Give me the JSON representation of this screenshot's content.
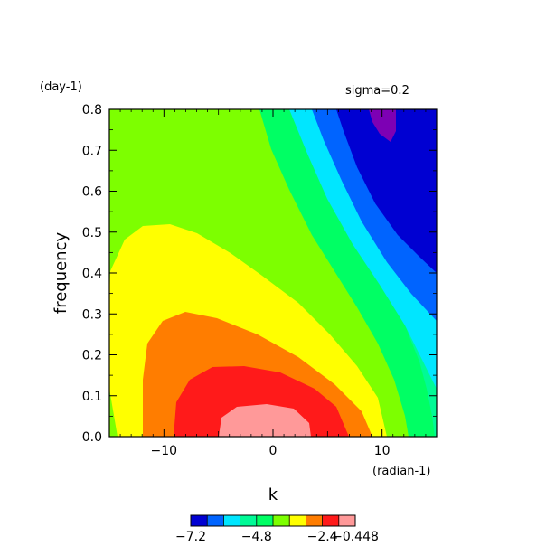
{
  "chart_data": {
    "type": "contour",
    "title": "",
    "annotation": "sigma=0.2",
    "xlabel": "k",
    "xunit": "(radian-1)",
    "ylabel": "frequency",
    "yunit": "(day-1)",
    "xlim": [
      -15,
      15
    ],
    "ylim": [
      0,
      0.8
    ],
    "xticks": [
      -10,
      0,
      10
    ],
    "xtick_labels": [
      "−10",
      "0",
      "10"
    ],
    "yticks": [
      0.0,
      0.1,
      0.2,
      0.3,
      0.4,
      0.5,
      0.6,
      0.7,
      0.8
    ],
    "ytick_labels": [
      "0.0",
      "0.1",
      "0.2",
      "0.3",
      "0.4",
      "0.5",
      "0.6",
      "0.7",
      "0.8"
    ],
    "levels": [
      -7.2,
      -6.6,
      -6.0,
      -5.4,
      -4.8,
      -4.2,
      -3.6,
      -3.0,
      -2.4,
      -1.8,
      -0.448
    ],
    "colors": [
      "#0000d2",
      "#0064ff",
      "#00e6ff",
      "#00fa96",
      "#00ff64",
      "#7dff00",
      "#ffff00",
      "#ff7d00",
      "#ff1a1a",
      "#ff9999"
    ],
    "below_min_color": "#7d00b4",
    "colorbar_labels": [
      "−7.2",
      "−4.8",
      "−2.4",
      "−0.448"
    ],
    "colorbar_label_values": [
      -7.2,
      -4.8,
      -2.4,
      -0.448
    ],
    "background_color": "#00fa96"
  }
}
